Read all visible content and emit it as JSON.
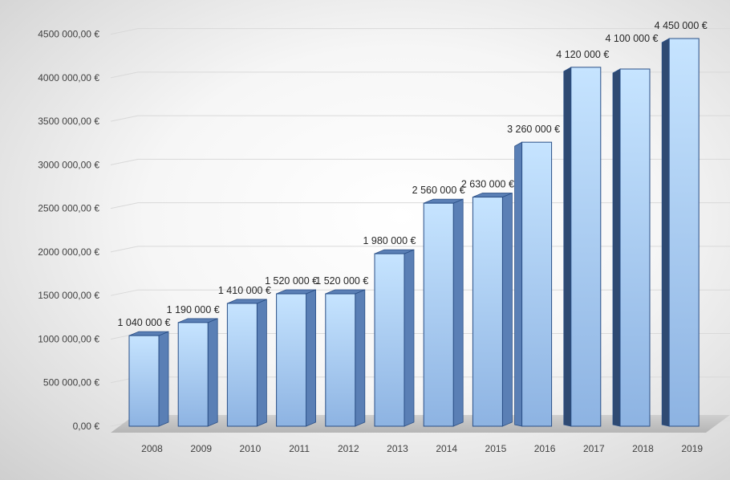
{
  "chart_data": {
    "type": "bar",
    "categories": [
      "2008",
      "2009",
      "2010",
      "2011",
      "2012",
      "2013",
      "2014",
      "2015",
      "2016",
      "2017",
      "2018",
      "2019"
    ],
    "values": [
      1040000,
      1190000,
      1410000,
      1520000,
      1520000,
      1980000,
      2560000,
      2630000,
      3260000,
      4120000,
      4100000,
      4450000
    ],
    "data_labels": [
      "1 040 000 €",
      "1 190 000 €",
      "1 410 000 €",
      "1 520 000 €",
      "1 520 000 €",
      "1 980 000 €",
      "2 560 000 €",
      "2 630 000 €",
      "3 260 000 €",
      "4 120 000 €",
      "4 100 000 €",
      "4 450 000 €"
    ],
    "y_tick_labels": [
      "0,00 €",
      "500 000,00 €",
      "1000 000,00 €",
      "1500 000,00 €",
      "2000 000,00 €",
      "2500 000,00 €",
      "3000 000,00 €",
      "3500 000,00 €",
      "4000 000,00 €",
      "4500 000,00 €"
    ],
    "y_ticks": [
      0,
      500000,
      1000000,
      1500000,
      2000000,
      2500000,
      3000000,
      3500000,
      4000000,
      4500000
    ],
    "ylim": [
      0,
      4500000
    ],
    "title": "",
    "xlabel": "",
    "ylabel": "",
    "grid": true,
    "style": "3d-clustered-column",
    "colors": {
      "bar_top": "#c6e4ff",
      "bar_bottom": "#8db3e2",
      "bar_side": "#5a7fb5",
      "bar_side_dark": "#2f4a72",
      "bar_edge": "#2a4f86",
      "floor": "#bfbfbf",
      "gridline": "#d9d9d9",
      "text": "#404040"
    }
  }
}
